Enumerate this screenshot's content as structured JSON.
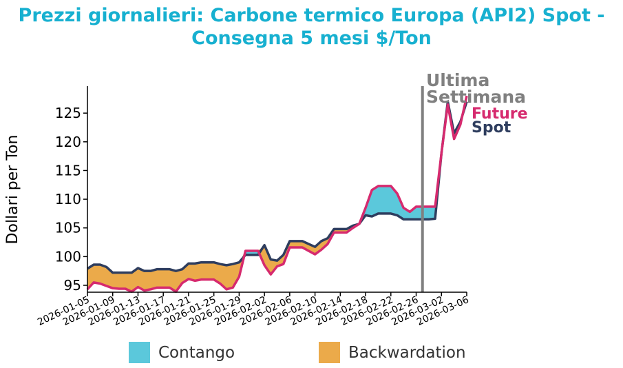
{
  "chart_data": {
    "type": "line",
    "title_line1": "Prezzi giornalieri: Carbone termico Europa (API2) Spot -",
    "title_line2": "Consegna 5 mesi $/Ton",
    "ylabel": "Dollari per Ton",
    "ylim": [
      93.8,
      129.7
    ],
    "yticks": [
      95,
      100,
      105,
      110,
      115,
      120,
      125
    ],
    "start_date": "2026-01-05",
    "xtick_labels": [
      "2026-01-05",
      "2026-01-09",
      "2026-01-13",
      "2026-01-17",
      "2026-01-21",
      "2026-01-25",
      "2026-01-29",
      "2026-02-02",
      "2026-02-06",
      "2026-02-10",
      "2026-02-14",
      "2026-02-18",
      "2026-02-22",
      "2026-02-26",
      "2026-03-02",
      "2026-03-06"
    ],
    "series": [
      {
        "name": "Spot",
        "color": "#2E3D5E",
        "values": [
          97.9,
          98.6,
          98.6,
          98.2,
          97.2,
          97.2,
          97.2,
          97.2,
          98.0,
          97.5,
          97.5,
          97.8,
          97.8,
          97.8,
          97.5,
          97.8,
          98.8,
          98.8,
          99.0,
          99.0,
          99.0,
          98.7,
          98.5,
          98.7,
          99.0,
          100.3,
          100.3,
          100.3,
          102.0,
          99.5,
          99.3,
          100.3,
          102.7,
          102.7,
          102.7,
          102.2,
          101.7,
          102.7,
          103.2,
          104.8,
          104.8,
          104.8,
          105.4,
          105.7,
          107.2,
          107.0,
          107.5,
          107.5,
          107.5,
          107.2,
          106.5,
          106.5,
          106.5,
          106.5,
          106.5,
          106.6,
          118.0,
          127.0,
          121.5,
          123.5,
          127.0
        ]
      },
      {
        "name": "Future",
        "color": "#D62A6E",
        "values": [
          94.3,
          95.5,
          95.3,
          94.9,
          94.5,
          94.4,
          94.4,
          93.9,
          94.7,
          94.1,
          94.3,
          94.6,
          94.6,
          94.6,
          93.9,
          95.4,
          96.1,
          95.8,
          96.0,
          96.0,
          96.0,
          95.3,
          94.3,
          94.6,
          96.5,
          101.0,
          101.0,
          101.0,
          98.5,
          96.9,
          98.3,
          98.7,
          101.6,
          101.6,
          101.6,
          101.0,
          100.4,
          101.2,
          102.2,
          104.2,
          104.2,
          104.2,
          105.0,
          105.7,
          108.5,
          111.6,
          112.3,
          112.3,
          112.3,
          111.0,
          108.5,
          107.8,
          108.7,
          108.7,
          108.7,
          108.7,
          118.0,
          126.5,
          120.5,
          123.0,
          128.0
        ]
      }
    ],
    "vline_day_index": 53,
    "annotation": "Ultima Settimana",
    "annotation_line1": "Ultima",
    "annotation_line2": "Settimana",
    "annotation_color": "#808080",
    "legend": [
      {
        "label": "Contango",
        "color": "#5BC8DB"
      },
      {
        "label": "Backwardation",
        "color": "#EBAA4A"
      }
    ],
    "legend_placement": "bottom"
  }
}
